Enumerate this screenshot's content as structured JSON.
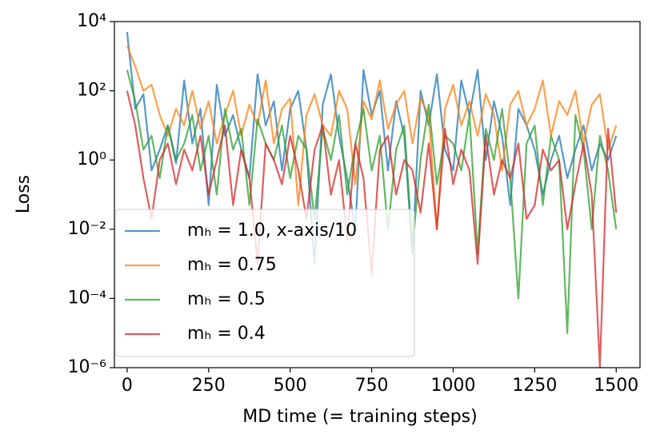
{
  "chart_data": {
    "type": "line",
    "x": [
      0,
      25,
      50,
      75,
      100,
      125,
      150,
      175,
      200,
      225,
      250,
      275,
      300,
      325,
      350,
      375,
      400,
      425,
      450,
      475,
      500,
      525,
      550,
      575,
      600,
      625,
      650,
      675,
      700,
      725,
      750,
      775,
      800,
      825,
      850,
      875,
      900,
      925,
      950,
      975,
      1000,
      1025,
      1050,
      1075,
      1100,
      1125,
      1150,
      1175,
      1200,
      1225,
      1250,
      1275,
      1300,
      1325,
      1350,
      1375,
      1400,
      1425,
      1450,
      1475,
      1500
    ],
    "xlabel": "MD time (= training steps)",
    "ylabel": "Loss",
    "xlim": [
      -39,
      1573
    ],
    "ylim": [
      1e-06,
      10000
    ],
    "yscale": "log",
    "xticks": [
      0,
      250,
      500,
      750,
      1000,
      1250,
      1500
    ],
    "yticks": [
      {
        "value": 1e-06,
        "label": "10⁻⁶"
      },
      {
        "value": 0.0001,
        "label": "10⁻⁴"
      },
      {
        "value": 0.01,
        "label": "10⁻²"
      },
      {
        "value": 1,
        "label": "10⁰"
      },
      {
        "value": 100,
        "label": "10²"
      },
      {
        "value": 10000,
        "label": "10⁴"
      }
    ],
    "legend": "lower left",
    "series": [
      {
        "name": "mₕ = 1.0, x-axis/10",
        "color": "#1f77b4",
        "values": [
          5000,
          30,
          80,
          0.5,
          2,
          10,
          0.8,
          200,
          3,
          30,
          0.05,
          150,
          5,
          20,
          2,
          0.3,
          300,
          10,
          50,
          0.5,
          30,
          100,
          2,
          0.001,
          40,
          300,
          5,
          0.3,
          0.01,
          400,
          20,
          100,
          0.5,
          50,
          5,
          0.002,
          100,
          10,
          300,
          2,
          0.5,
          200,
          20,
          400,
          1,
          50,
          5,
          0.05,
          30,
          10,
          2,
          0.1,
          1,
          5,
          0.3,
          2,
          10,
          0.5,
          3,
          1,
          5
        ]
      },
      {
        "name": "mₕ = 0.75",
        "color": "#ff7f0e",
        "values": [
          2000,
          500,
          100,
          150,
          20,
          5,
          30,
          10,
          100,
          8,
          50,
          3,
          20,
          100,
          5,
          40,
          10,
          200,
          3,
          30,
          60,
          0.05,
          20,
          80,
          10,
          5,
          100,
          30,
          0.2,
          50,
          15,
          200,
          8,
          40,
          100,
          3,
          60,
          20,
          0.01,
          30,
          150,
          10,
          50,
          5,
          80,
          20,
          0.5,
          40,
          100,
          10,
          30,
          200,
          5,
          50,
          20,
          100,
          3,
          40,
          80,
          2,
          10
        ]
      },
      {
        "name": "mₕ = 0.5",
        "color": "#2ca02c",
        "values": [
          400,
          50,
          2,
          5,
          0.3,
          10,
          1,
          3,
          20,
          0.5,
          5,
          0.1,
          30,
          2,
          8,
          0.05,
          15,
          3,
          1,
          10,
          0.3,
          5,
          2,
          0.02,
          8,
          1,
          20,
          0.1,
          3,
          30,
          0.5,
          5,
          0.01,
          2,
          10,
          0.003,
          1,
          40,
          0.2,
          5,
          3,
          0.5,
          20,
          0.002,
          8,
          1,
          30,
          0.3,
          0.0001,
          3,
          10,
          0.05,
          5,
          1,
          1e-05,
          20,
          2,
          0.01,
          5,
          0.5,
          0.01
        ]
      },
      {
        "name": "mₕ = 0.4",
        "color": "#d62728",
        "values": [
          100,
          10,
          0.3,
          0.02,
          1,
          3,
          0.2,
          2,
          0.5,
          5,
          0.1,
          1,
          10,
          0.05,
          2,
          0.3,
          0.001,
          3,
          1,
          0.2,
          5,
          0.5,
          0.02,
          2,
          10,
          0.1,
          1,
          0.005,
          3,
          0.3,
          0.0005,
          2,
          5,
          0.1,
          1,
          0.5,
          0.03,
          3,
          0.01,
          8,
          0.2,
          2,
          0.5,
          0.001,
          5,
          0.1,
          1,
          0.3,
          3,
          0.02,
          0.05,
          2,
          0.5,
          1,
          0.01,
          0.2,
          3,
          0.1,
          1e-06,
          8,
          0.03
        ]
      }
    ]
  }
}
